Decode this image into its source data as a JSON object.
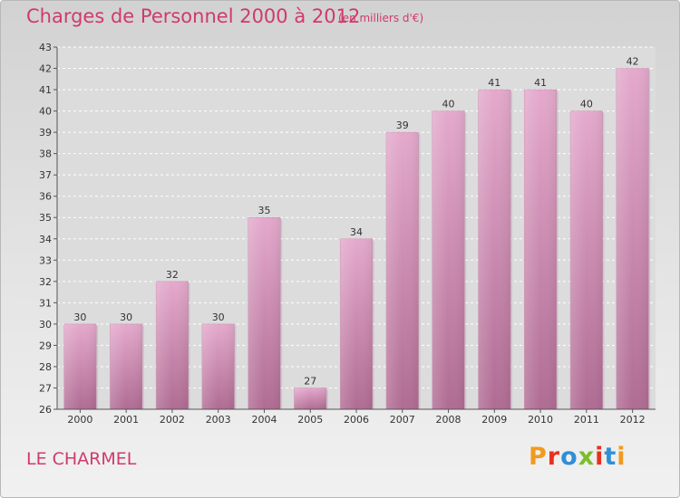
{
  "header": {
    "title": "Charges de Personnel 2000 à 2012",
    "subtitle": "(en milliers d'€)"
  },
  "footer": {
    "commune": "LE CHARMEL",
    "logo_text": "Proxiti"
  },
  "colors": {
    "title": "#d03a6b",
    "bar_top": "#e4a9cc",
    "bar_bottom": "#b06c93",
    "logo_letters": [
      "#f29a1f",
      "#e8311c",
      "#2f8fd6",
      "#7cbd2c",
      "#e8311c",
      "#2f8fd6",
      "#f29a1f"
    ]
  },
  "chart_data": {
    "type": "bar",
    "categories": [
      "2000",
      "2001",
      "2002",
      "2003",
      "2004",
      "2005",
      "2006",
      "2007",
      "2008",
      "2009",
      "2010",
      "2011",
      "2012"
    ],
    "values": [
      30,
      30,
      32,
      30,
      35,
      27,
      34,
      39,
      40,
      41,
      41,
      40,
      42
    ],
    "title": "Charges de Personnel 2000 à 2012",
    "subtitle": "(en milliers d'€)",
    "xlabel": "",
    "ylabel": "",
    "ylim": [
      26,
      43
    ],
    "yticks": [
      26,
      27,
      28,
      29,
      30,
      31,
      32,
      33,
      34,
      35,
      36,
      37,
      38,
      39,
      40,
      41,
      42,
      43
    ],
    "grid": true,
    "data_labels": true
  }
}
